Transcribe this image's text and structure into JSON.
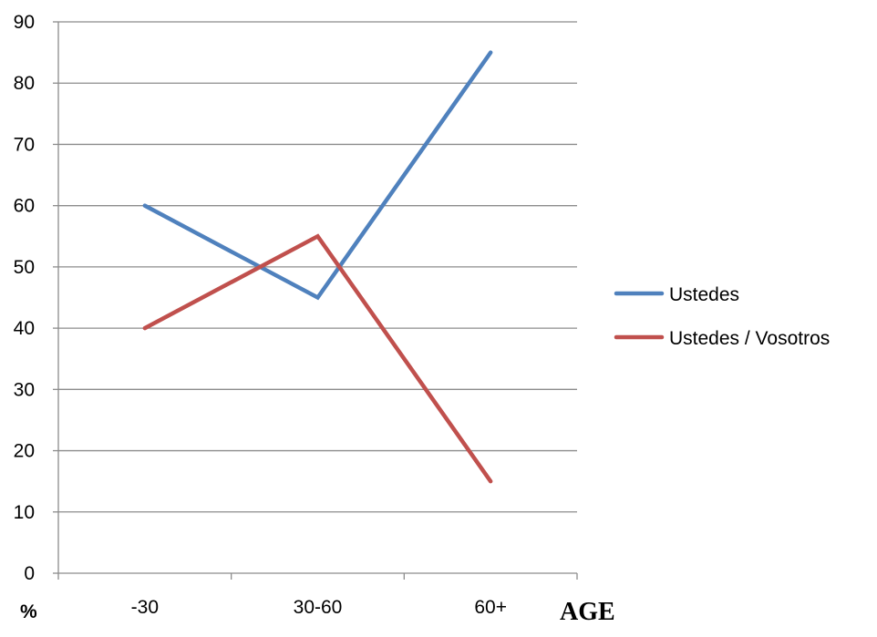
{
  "chart_data": {
    "type": "line",
    "categories": [
      "-30",
      "30-60",
      "60+"
    ],
    "series": [
      {
        "name": "Ustedes",
        "values": [
          60,
          45,
          85
        ],
        "color": "#4f81bd"
      },
      {
        "name": "Ustedes / Vosotros",
        "values": [
          40,
          55,
          15
        ],
        "color": "#c0504d"
      }
    ],
    "ylim": [
      0,
      90
    ],
    "yticks": [
      "0",
      "10",
      "20",
      "30",
      "40",
      "50",
      "60",
      "70",
      "80",
      "90"
    ],
    "ylabel": "%",
    "xlabel": "AGE",
    "grid": true,
    "legend_position": "right"
  }
}
